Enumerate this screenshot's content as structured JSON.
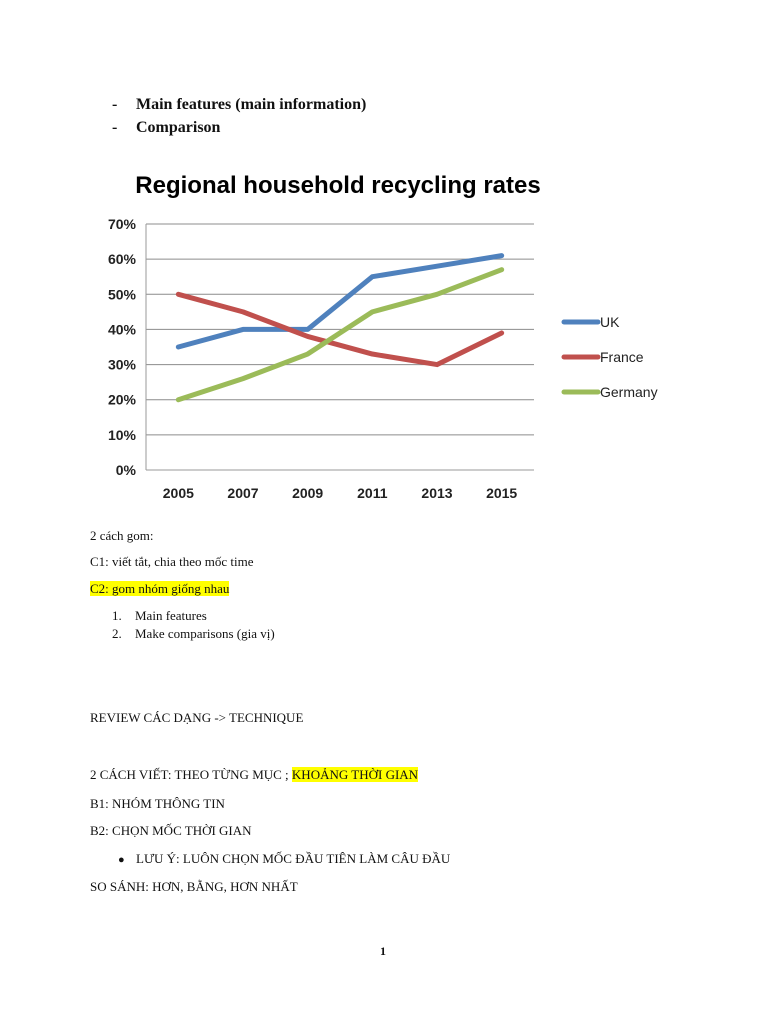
{
  "intro_list": [
    {
      "marker": "-",
      "text": "Main features (main information)"
    },
    {
      "marker": "-",
      "text": "Comparison"
    }
  ],
  "chart_data": {
    "type": "line",
    "title": "Regional household recycling rates",
    "x": [
      "2005",
      "2007",
      "2009",
      "2011",
      "2013",
      "2015"
    ],
    "ylim": [
      0,
      70
    ],
    "yticks": [
      "0%",
      "10%",
      "20%",
      "30%",
      "40%",
      "50%",
      "60%",
      "70%"
    ],
    "grid": true,
    "legend": "right",
    "series": [
      {
        "name": "UK",
        "color": "#4f81bd",
        "values": [
          35,
          40,
          40,
          55,
          58,
          61
        ]
      },
      {
        "name": "France",
        "color": "#c0504d",
        "values": [
          50,
          45,
          38,
          33,
          30,
          39
        ]
      },
      {
        "name": "Germany",
        "color": "#9bbb59",
        "values": [
          20,
          26,
          33,
          45,
          50,
          57
        ]
      }
    ]
  },
  "notes": {
    "line1": "2 cách gom:",
    "line2": "C1: viết tắt, chia theo mốc time",
    "line3": "C2: gom nhóm giống nhau",
    "steps": [
      {
        "num": "1.",
        "text": "Main features"
      },
      {
        "num": "2.",
        "text": "Make comparisons (gia vị)"
      }
    ],
    "review": "REVIEW CÁC DẠNG -> TECHNIQUE",
    "ways_prefix": "2 CÁCH VIẾT: THEO TỪNG MỤC ; ",
    "ways_highlight": "KHOẢNG THỜI GIAN",
    "b1": "B1: NHÓM THÔNG TIN",
    "b2": "B2: CHỌN MỐC THỜI GIAN",
    "bullet_marker": "●",
    "bullet": "LƯU Ý: LUÔN CHỌN MỐC ĐẦU TIÊN LÀM CÂU ĐẦU",
    "compare": "SO SÁNH: HƠN, BẰNG, HƠN NHẤT"
  },
  "page_number": "1"
}
